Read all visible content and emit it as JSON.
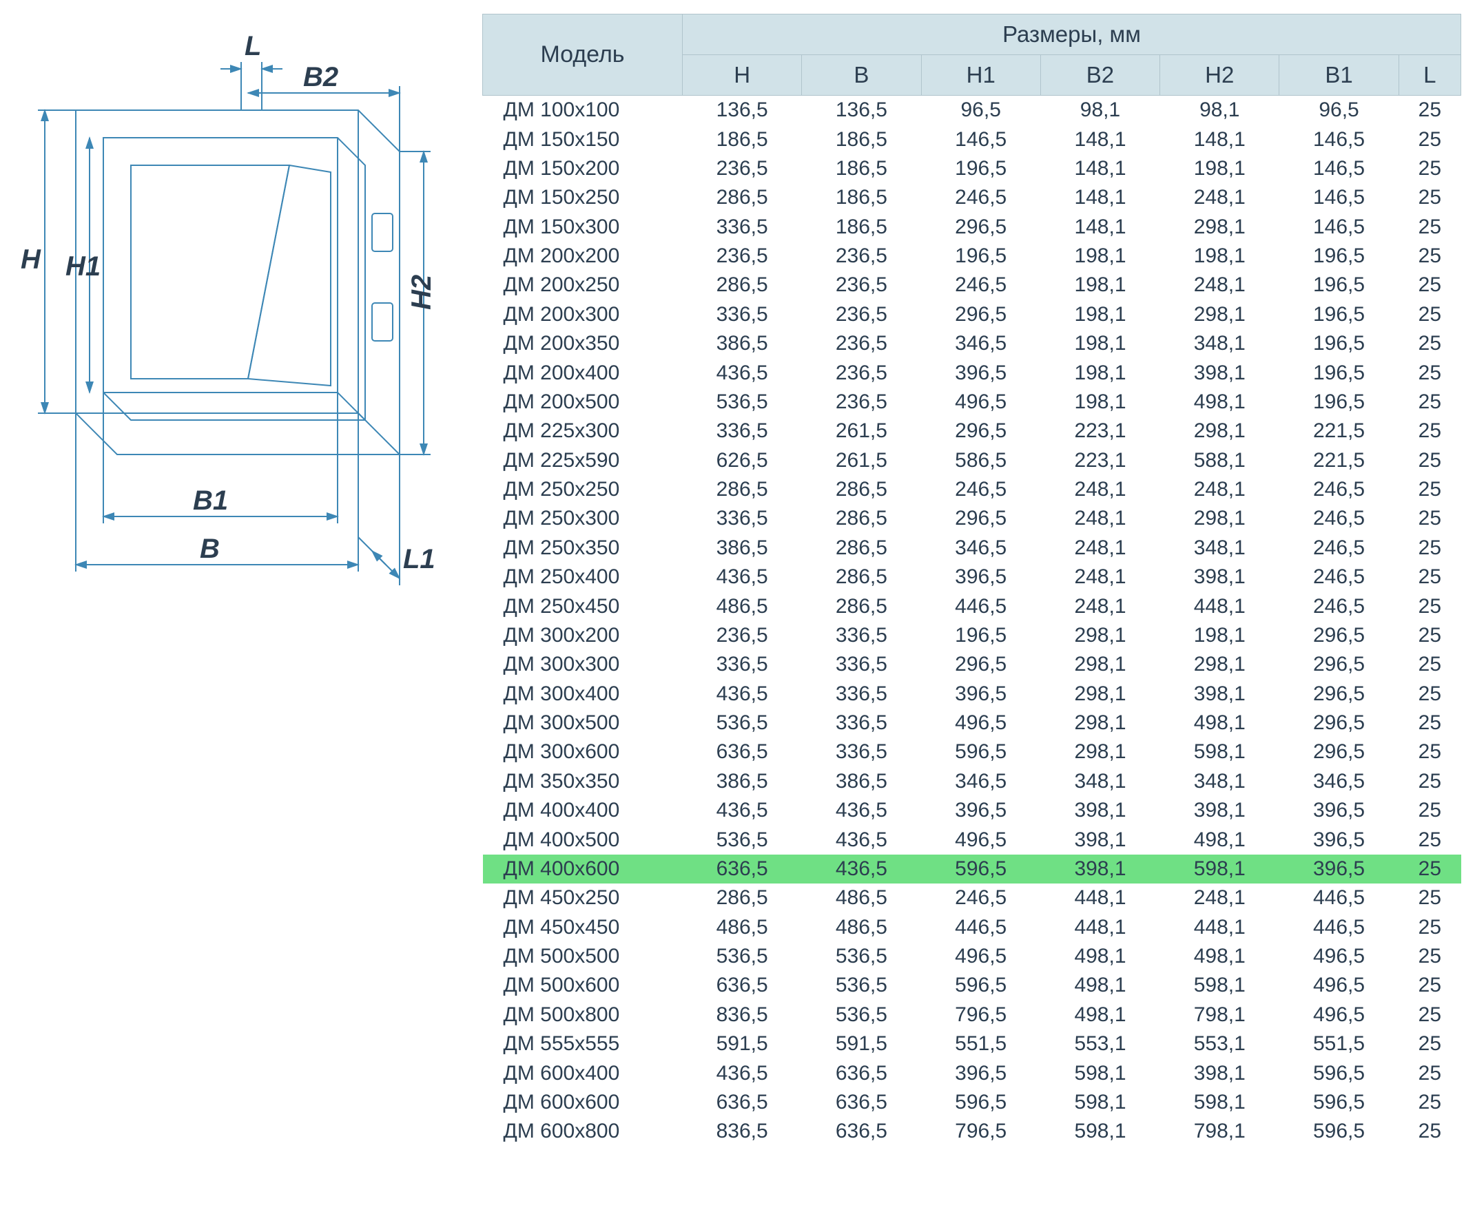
{
  "diagram": {
    "labels": {
      "H": "H",
      "H1": "H1",
      "H2": "H2",
      "B": "B",
      "B1": "B1",
      "B2": "B2",
      "L": "L",
      "L1": "L1"
    },
    "line_color": "#3d87b5",
    "line_width": 2,
    "label_fontsize": 40,
    "label_color": "#2c3e50",
    "label_font_style": "italic",
    "label_font_weight": "bold"
  },
  "table": {
    "header_bg": "#d1e2e8",
    "header_border": "#b0c4cc",
    "header_text_color": "#2c3e50",
    "body_text_color": "#2c3e50",
    "highlight_bg": "#6fe084",
    "highlight_index": 26,
    "columns_superheader_model": "Модель",
    "columns_superheader_dims": "Размеры, мм",
    "columns": [
      "H",
      "B",
      "H1",
      "B2",
      "H2",
      "B1",
      "L"
    ],
    "rows": [
      {
        "model": "ДМ 100х100",
        "H": "136,5",
        "B": "136,5",
        "H1": "96,5",
        "B2": "98,1",
        "H2": "98,1",
        "B1": "96,5",
        "L": "25"
      },
      {
        "model": "ДМ 150х150",
        "H": "186,5",
        "B": "186,5",
        "H1": "146,5",
        "B2": "148,1",
        "H2": "148,1",
        "B1": "146,5",
        "L": "25"
      },
      {
        "model": "ДМ 150х200",
        "H": "236,5",
        "B": "186,5",
        "H1": "196,5",
        "B2": "148,1",
        "H2": "198,1",
        "B1": "146,5",
        "L": "25"
      },
      {
        "model": "ДМ 150х250",
        "H": "286,5",
        "B": "186,5",
        "H1": "246,5",
        "B2": "148,1",
        "H2": "248,1",
        "B1": "146,5",
        "L": "25"
      },
      {
        "model": "ДМ 150х300",
        "H": "336,5",
        "B": "186,5",
        "H1": "296,5",
        "B2": "148,1",
        "H2": "298,1",
        "B1": "146,5",
        "L": "25"
      },
      {
        "model": "ДМ 200х200",
        "H": "236,5",
        "B": "236,5",
        "H1": "196,5",
        "B2": "198,1",
        "H2": "198,1",
        "B1": "196,5",
        "L": "25"
      },
      {
        "model": "ДМ 200х250",
        "H": "286,5",
        "B": "236,5",
        "H1": "246,5",
        "B2": "198,1",
        "H2": "248,1",
        "B1": "196,5",
        "L": "25"
      },
      {
        "model": "ДМ 200х300",
        "H": "336,5",
        "B": "236,5",
        "H1": "296,5",
        "B2": "198,1",
        "H2": "298,1",
        "B1": "196,5",
        "L": "25"
      },
      {
        "model": "ДМ 200х350",
        "H": "386,5",
        "B": "236,5",
        "H1": "346,5",
        "B2": "198,1",
        "H2": "348,1",
        "B1": "196,5",
        "L": "25"
      },
      {
        "model": "ДМ 200х400",
        "H": "436,5",
        "B": "236,5",
        "H1": "396,5",
        "B2": "198,1",
        "H2": "398,1",
        "B1": "196,5",
        "L": "25"
      },
      {
        "model": "ДМ 200х500",
        "H": "536,5",
        "B": "236,5",
        "H1": "496,5",
        "B2": "198,1",
        "H2": "498,1",
        "B1": "196,5",
        "L": "25"
      },
      {
        "model": "ДМ 225х300",
        "H": "336,5",
        "B": "261,5",
        "H1": "296,5",
        "B2": "223,1",
        "H2": "298,1",
        "B1": "221,5",
        "L": "25"
      },
      {
        "model": "ДМ 225х590",
        "H": "626,5",
        "B": "261,5",
        "H1": "586,5",
        "B2": "223,1",
        "H2": "588,1",
        "B1": "221,5",
        "L": "25"
      },
      {
        "model": "ДМ 250х250",
        "H": "286,5",
        "B": "286,5",
        "H1": "246,5",
        "B2": "248,1",
        "H2": "248,1",
        "B1": "246,5",
        "L": "25"
      },
      {
        "model": "ДМ 250х300",
        "H": "336,5",
        "B": "286,5",
        "H1": "296,5",
        "B2": "248,1",
        "H2": "298,1",
        "B1": "246,5",
        "L": "25"
      },
      {
        "model": "ДМ 250х350",
        "H": "386,5",
        "B": "286,5",
        "H1": "346,5",
        "B2": "248,1",
        "H2": "348,1",
        "B1": "246,5",
        "L": "25"
      },
      {
        "model": "ДМ 250х400",
        "H": "436,5",
        "B": "286,5",
        "H1": "396,5",
        "B2": "248,1",
        "H2": "398,1",
        "B1": "246,5",
        "L": "25"
      },
      {
        "model": "ДМ 250х450",
        "H": "486,5",
        "B": "286,5",
        "H1": "446,5",
        "B2": "248,1",
        "H2": "448,1",
        "B1": "246,5",
        "L": "25"
      },
      {
        "model": "ДМ 300х200",
        "H": "236,5",
        "B": "336,5",
        "H1": "196,5",
        "B2": "298,1",
        "H2": "198,1",
        "B1": "296,5",
        "L": "25"
      },
      {
        "model": "ДМ 300х300",
        "H": "336,5",
        "B": "336,5",
        "H1": "296,5",
        "B2": "298,1",
        "H2": "298,1",
        "B1": "296,5",
        "L": "25"
      },
      {
        "model": "ДМ 300х400",
        "H": "436,5",
        "B": "336,5",
        "H1": "396,5",
        "B2": "298,1",
        "H2": "398,1",
        "B1": "296,5",
        "L": "25"
      },
      {
        "model": "ДМ 300х500",
        "H": "536,5",
        "B": "336,5",
        "H1": "496,5",
        "B2": "298,1",
        "H2": "498,1",
        "B1": "296,5",
        "L": "25"
      },
      {
        "model": "ДМ 300х600",
        "H": "636,5",
        "B": "336,5",
        "H1": "596,5",
        "B2": "298,1",
        "H2": "598,1",
        "B1": "296,5",
        "L": "25"
      },
      {
        "model": "ДМ 350х350",
        "H": "386,5",
        "B": "386,5",
        "H1": "346,5",
        "B2": "348,1",
        "H2": "348,1",
        "B1": "346,5",
        "L": "25"
      },
      {
        "model": "ДМ 400х400",
        "H": "436,5",
        "B": "436,5",
        "H1": "396,5",
        "B2": "398,1",
        "H2": "398,1",
        "B1": "396,5",
        "L": "25"
      },
      {
        "model": "ДМ 400х500",
        "H": "536,5",
        "B": "436,5",
        "H1": "496,5",
        "B2": "398,1",
        "H2": "498,1",
        "B1": "396,5",
        "L": "25"
      },
      {
        "model": "ДМ 400х600",
        "H": "636,5",
        "B": "436,5",
        "H1": "596,5",
        "B2": "398,1",
        "H2": "598,1",
        "B1": "396,5",
        "L": "25"
      },
      {
        "model": "ДМ 450х250",
        "H": "286,5",
        "B": "486,5",
        "H1": "246,5",
        "B2": "448,1",
        "H2": "248,1",
        "B1": "446,5",
        "L": "25"
      },
      {
        "model": "ДМ 450х450",
        "H": "486,5",
        "B": "486,5",
        "H1": "446,5",
        "B2": "448,1",
        "H2": "448,1",
        "B1": "446,5",
        "L": "25"
      },
      {
        "model": "ДМ 500х500",
        "H": "536,5",
        "B": "536,5",
        "H1": "496,5",
        "B2": "498,1",
        "H2": "498,1",
        "B1": "496,5",
        "L": "25"
      },
      {
        "model": "ДМ 500х600",
        "H": "636,5",
        "B": "536,5",
        "H1": "596,5",
        "B2": "498,1",
        "H2": "598,1",
        "B1": "496,5",
        "L": "25"
      },
      {
        "model": "ДМ 500х800",
        "H": "836,5",
        "B": "536,5",
        "H1": "796,5",
        "B2": "498,1",
        "H2": "798,1",
        "B1": "496,5",
        "L": "25"
      },
      {
        "model": "ДМ 555х555",
        "H": "591,5",
        "B": "591,5",
        "H1": "551,5",
        "B2": "553,1",
        "H2": "553,1",
        "B1": "551,5",
        "L": "25"
      },
      {
        "model": "ДМ 600х400",
        "H": "436,5",
        "B": "636,5",
        "H1": "396,5",
        "B2": "598,1",
        "H2": "398,1",
        "B1": "596,5",
        "L": "25"
      },
      {
        "model": "ДМ 600х600",
        "H": "636,5",
        "B": "636,5",
        "H1": "596,5",
        "B2": "598,1",
        "H2": "598,1",
        "B1": "596,5",
        "L": "25"
      },
      {
        "model": "ДМ 600х800",
        "H": "836,5",
        "B": "636,5",
        "H1": "796,5",
        "B2": "598,1",
        "H2": "798,1",
        "B1": "596,5",
        "L": "25"
      }
    ]
  }
}
